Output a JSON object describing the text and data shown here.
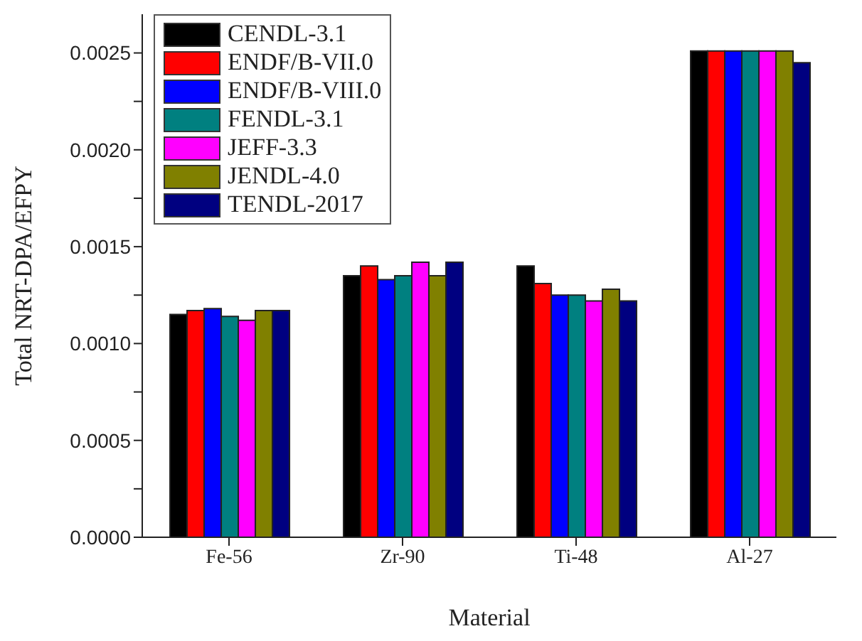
{
  "chart_data": {
    "type": "bar",
    "xlabel": "Material",
    "ylabel": "Total NRT-DPA/EFPY",
    "categories": [
      "Fe-56",
      "Zr-90",
      "Ti-48",
      "Al-27"
    ],
    "series": [
      {
        "name": "CENDL-3.1",
        "color": "#000000",
        "values": [
          0.00115,
          0.00135,
          0.0014,
          0.00251
        ]
      },
      {
        "name": "ENDF/B-VII.0",
        "color": "#ff0000",
        "values": [
          0.00117,
          0.0014,
          0.00131,
          0.00251
        ]
      },
      {
        "name": "ENDF/B-VIII.0",
        "color": "#0000ff",
        "values": [
          0.00118,
          0.00133,
          0.00125,
          0.00251
        ]
      },
      {
        "name": "FENDL-3.1",
        "color": "#008080",
        "values": [
          0.00114,
          0.00135,
          0.00125,
          0.00251
        ]
      },
      {
        "name": "JEFF-3.3",
        "color": "#ff00ff",
        "values": [
          0.00112,
          0.00142,
          0.00122,
          0.00251
        ]
      },
      {
        "name": "JENDL-4.0",
        "color": "#808000",
        "values": [
          0.00117,
          0.00135,
          0.00128,
          0.00251
        ]
      },
      {
        "name": "TENDL-2017",
        "color": "#000080",
        "values": [
          0.00117,
          0.00142,
          0.00122,
          0.00245
        ]
      }
    ],
    "ylim": [
      0,
      0.0027
    ],
    "yticks": [
      {
        "value": 0,
        "label": "0.0000"
      },
      {
        "value": 0.00025,
        "label": null
      },
      {
        "value": 0.0005,
        "label": "0.0005"
      },
      {
        "value": 0.00075,
        "label": null
      },
      {
        "value": 0.001,
        "label": "0.0010"
      },
      {
        "value": 0.00125,
        "label": null
      },
      {
        "value": 0.0015,
        "label": "0.0015"
      },
      {
        "value": 0.00175,
        "label": null
      },
      {
        "value": 0.002,
        "label": "0.0020"
      },
      {
        "value": 0.00225,
        "label": null
      },
      {
        "value": 0.0025,
        "label": "0.0025"
      }
    ],
    "grid": false,
    "legend": "top left"
  }
}
